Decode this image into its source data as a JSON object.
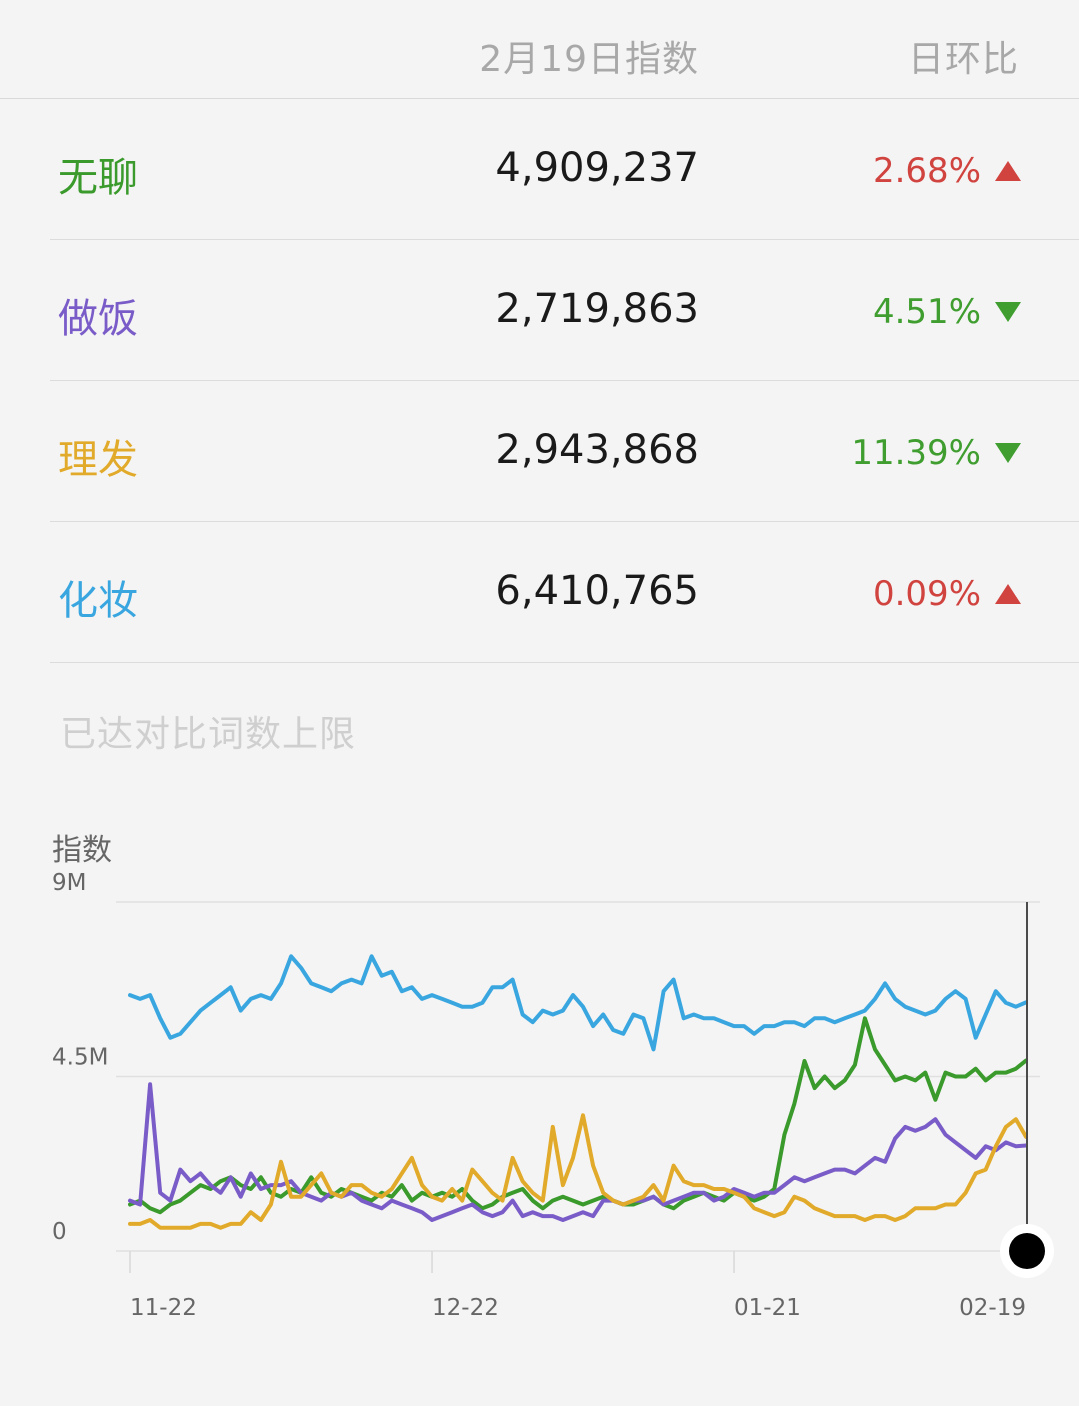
{
  "header": {
    "index_label": "2月19日指数",
    "change_label": "日环比"
  },
  "rows": [
    {
      "term": "无聊",
      "value": "4,909,237",
      "change": "2.68%",
      "direction": "up",
      "color": "#3a9a2c"
    },
    {
      "term": "做饭",
      "value": "2,719,863",
      "change": "4.51%",
      "direction": "down",
      "color": "#7a5cc8"
    },
    {
      "term": "理发",
      "value": "2,943,868",
      "change": "11.39%",
      "direction": "down",
      "color": "#e2aa2a"
    },
    {
      "term": "化妆",
      "value": "6,410,765",
      "change": "0.09%",
      "direction": "up",
      "color": "#3aa6e0"
    }
  ],
  "colors": {
    "up": "#d0433f",
    "down": "#3f9e2f"
  },
  "limit_note": "已达对比词数上限",
  "chart_data": {
    "type": "line",
    "ylabel": "指数",
    "ylim": [
      0,
      9000000
    ],
    "yticks": [
      {
        "value": 0,
        "label": "0"
      },
      {
        "value": 4500000,
        "label": "4.5M"
      },
      {
        "value": 9000000,
        "label": "9M"
      }
    ],
    "x_range": [
      "11-22",
      "02-19"
    ],
    "xticks": [
      {
        "label": "11-22",
        "index": 0
      },
      {
        "label": "12-22",
        "index": 30
      },
      {
        "label": "01-21",
        "index": 60
      },
      {
        "label": "02-19",
        "index": 89
      }
    ],
    "legend": "none",
    "series": [
      {
        "name": "化妆",
        "color": "#3aa6e0",
        "values": [
          6600000,
          6500000,
          6600000,
          6000000,
          5500000,
          5600000,
          5900000,
          6200000,
          6400000,
          6600000,
          6800000,
          6200000,
          6500000,
          6600000,
          6500000,
          6900000,
          7600000,
          7300000,
          6900000,
          6800000,
          6700000,
          6900000,
          7000000,
          6900000,
          7600000,
          7100000,
          7200000,
          6700000,
          6800000,
          6500000,
          6600000,
          6500000,
          6400000,
          6300000,
          6300000,
          6400000,
          6800000,
          6800000,
          7000000,
          6100000,
          5900000,
          6200000,
          6100000,
          6200000,
          6600000,
          6300000,
          5800000,
          6100000,
          5700000,
          5600000,
          6100000,
          6000000,
          5200000,
          6700000,
          7000000,
          6000000,
          6100000,
          6000000,
          6000000,
          5900000,
          5800000,
          5800000,
          5600000,
          5800000,
          5800000,
          5900000,
          5900000,
          5800000,
          6000000,
          6000000,
          5900000,
          6000000,
          6100000,
          6200000,
          6500000,
          6900000,
          6500000,
          6300000,
          6200000,
          6100000,
          6200000,
          6500000,
          6700000,
          6500000,
          5500000,
          6100000,
          6700000,
          6400000,
          6300000,
          6410765
        ]
      },
      {
        "name": "无聊",
        "color": "#3a9a2c",
        "values": [
          1200000,
          1300000,
          1100000,
          1000000,
          1200000,
          1300000,
          1500000,
          1700000,
          1600000,
          1800000,
          1900000,
          1700000,
          1600000,
          1900000,
          1500000,
          1400000,
          1600000,
          1500000,
          1900000,
          1500000,
          1400000,
          1600000,
          1500000,
          1400000,
          1300000,
          1500000,
          1400000,
          1700000,
          1300000,
          1500000,
          1400000,
          1500000,
          1400000,
          1600000,
          1300000,
          1100000,
          1200000,
          1400000,
          1500000,
          1600000,
          1300000,
          1100000,
          1300000,
          1400000,
          1300000,
          1200000,
          1300000,
          1400000,
          1300000,
          1200000,
          1200000,
          1300000,
          1400000,
          1200000,
          1100000,
          1300000,
          1400000,
          1500000,
          1400000,
          1300000,
          1500000,
          1400000,
          1300000,
          1400000,
          1600000,
          3000000,
          3800000,
          4900000,
          4200000,
          4500000,
          4200000,
          4400000,
          4800000,
          6000000,
          5200000,
          4800000,
          4400000,
          4500000,
          4400000,
          4600000,
          3900000,
          4600000,
          4500000,
          4500000,
          4700000,
          4400000,
          4600000,
          4600000,
          4700000,
          4909237
        ]
      },
      {
        "name": "做饭",
        "color": "#7a5cc8",
        "values": [
          1300000,
          1200000,
          4300000,
          1500000,
          1300000,
          2100000,
          1800000,
          2000000,
          1700000,
          1500000,
          1900000,
          1400000,
          2000000,
          1600000,
          1700000,
          1700000,
          1800000,
          1500000,
          1400000,
          1300000,
          1500000,
          1400000,
          1500000,
          1300000,
          1200000,
          1100000,
          1300000,
          1200000,
          1100000,
          1000000,
          800000,
          900000,
          1000000,
          1100000,
          1200000,
          1000000,
          900000,
          1000000,
          1300000,
          900000,
          1000000,
          900000,
          900000,
          800000,
          900000,
          1000000,
          900000,
          1300000,
          1300000,
          1200000,
          1300000,
          1300000,
          1400000,
          1200000,
          1300000,
          1400000,
          1500000,
          1500000,
          1300000,
          1400000,
          1600000,
          1500000,
          1400000,
          1500000,
          1500000,
          1700000,
          1900000,
          1800000,
          1900000,
          2000000,
          2100000,
          2100000,
          2000000,
          2200000,
          2400000,
          2300000,
          2900000,
          3200000,
          3100000,
          3200000,
          3400000,
          3000000,
          2800000,
          2600000,
          2400000,
          2700000,
          2600000,
          2800000,
          2700000,
          2719863
        ]
      },
      {
        "name": "理发",
        "color": "#e2aa2a",
        "values": [
          700000,
          700000,
          800000,
          600000,
          600000,
          600000,
          600000,
          700000,
          700000,
          600000,
          700000,
          700000,
          1000000,
          800000,
          1200000,
          2300000,
          1400000,
          1400000,
          1700000,
          2000000,
          1500000,
          1400000,
          1700000,
          1700000,
          1500000,
          1400000,
          1600000,
          2000000,
          2400000,
          1700000,
          1400000,
          1300000,
          1600000,
          1300000,
          2100000,
          1800000,
          1500000,
          1300000,
          2400000,
          1800000,
          1500000,
          1300000,
          3200000,
          1700000,
          2400000,
          3500000,
          2200000,
          1500000,
          1300000,
          1200000,
          1300000,
          1400000,
          1700000,
          1300000,
          2200000,
          1800000,
          1700000,
          1700000,
          1600000,
          1600000,
          1500000,
          1400000,
          1100000,
          1000000,
          900000,
          1000000,
          1400000,
          1300000,
          1100000,
          1000000,
          900000,
          900000,
          900000,
          800000,
          900000,
          900000,
          800000,
          900000,
          1100000,
          1100000,
          1100000,
          1200000,
          1200000,
          1500000,
          2000000,
          2100000,
          2700000,
          3200000,
          3400000,
          2943868
        ]
      }
    ]
  }
}
